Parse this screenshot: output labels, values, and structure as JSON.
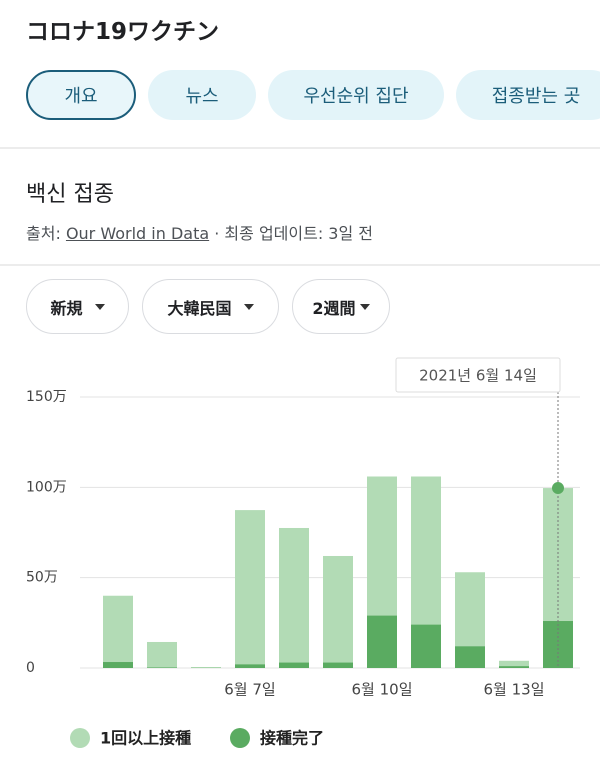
{
  "header": {
    "title": "コロナ19ワクチン",
    "tabs": [
      "개요",
      "뉴스",
      "우선순위 집단",
      "접종받는 곳"
    ]
  },
  "section": {
    "title": "백신 접종",
    "source_prefix": "출처:",
    "source_link": "Our World in Data",
    "source_suffix": "· 최종 업데이트: 3일 전"
  },
  "filters": [
    "新規",
    "大韓民国",
    "2週間"
  ],
  "chart_data": {
    "type": "bar",
    "categories": [
      null,
      null,
      null,
      "6월 7일",
      null,
      null,
      "6월 10일",
      null,
      null,
      "6월 13일",
      null
    ],
    "series": [
      {
        "name": "1回以上接種",
        "color": "#b2dbb5",
        "values": [
          40,
          14.4,
          0.5,
          87.4,
          77.5,
          62,
          106,
          106,
          53,
          4,
          99.6
        ]
      },
      {
        "name": "接種完了",
        "color": "#5aab61",
        "values": [
          3.3,
          0.3,
          0.1,
          2,
          3,
          3,
          29,
          24,
          12,
          1,
          26
        ]
      }
    ],
    "ylim": [
      0,
      150
    ],
    "yticks": [
      0,
      {
        "value": 50,
        "label": "50万"
      },
      {
        "value": 100,
        "label": "100万"
      },
      {
        "value": 150,
        "label": "150万"
      }
    ],
    "grid": true,
    "tooltip": "2021년 6월 14일",
    "legend": "bottom"
  }
}
